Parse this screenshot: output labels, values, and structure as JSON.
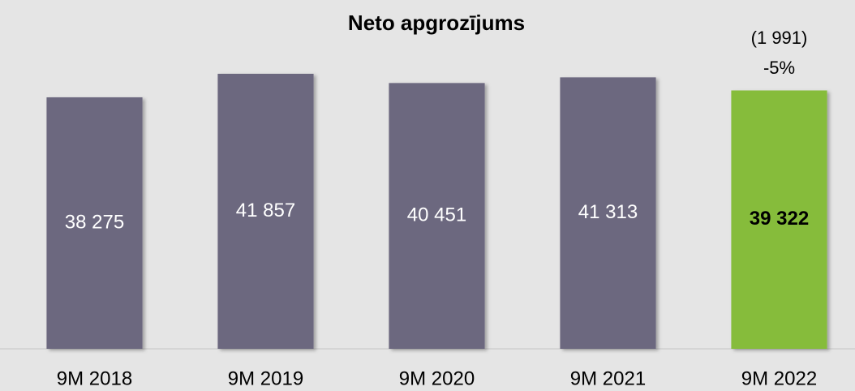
{
  "chart_data": {
    "type": "bar",
    "title": "Neto apgrozījums",
    "categories": [
      "9M 2018",
      "9M 2019",
      "9M 2020",
      "9M 2021",
      "9M 2022"
    ],
    "values": [
      38275,
      41857,
      40451,
      41313,
      39322
    ],
    "value_labels": [
      "38 275",
      "41 857",
      "40 451",
      "41 313",
      "39 322"
    ],
    "colors": [
      "#6c677f",
      "#6c677f",
      "#6c677f",
      "#6c677f",
      "#86bc3a"
    ],
    "value_label_colors": [
      "#ffffff",
      "#ffffff",
      "#ffffff",
      "#ffffff",
      "#000000"
    ],
    "annotations": [
      "(1 991)",
      "-5%"
    ],
    "ylim": [
      0,
      50000
    ]
  }
}
